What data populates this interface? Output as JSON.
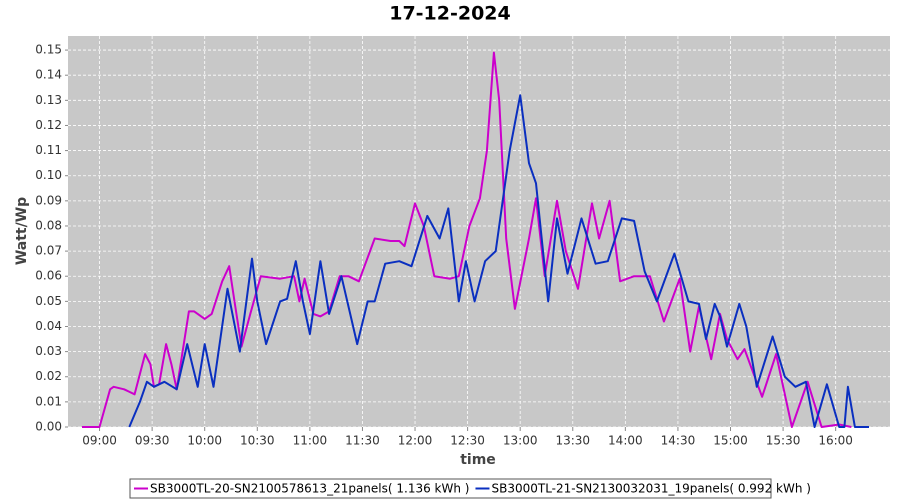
{
  "chart_data": {
    "type": "line",
    "title": "17-12-2024",
    "xlabel": "time",
    "ylabel": "Watt/Wp",
    "xlim": [
      "08:42",
      "16:31"
    ],
    "ylim": [
      0,
      0.1556
    ],
    "xticks": [
      "09:00",
      "09:30",
      "10:00",
      "10:30",
      "11:00",
      "11:30",
      "12:00",
      "12:30",
      "13:00",
      "13:30",
      "14:00",
      "14:30",
      "15:00",
      "15:30",
      "16:00"
    ],
    "yticks": [
      {
        "value": 0,
        "label": "0.00"
      },
      {
        "value": 0.01,
        "label": "0.01"
      },
      {
        "value": 0.02,
        "label": "0.02"
      },
      {
        "value": 0.03,
        "label": "0.03"
      },
      {
        "value": 0.04,
        "label": "0.04"
      },
      {
        "value": 0.05,
        "label": "0.05"
      },
      {
        "value": 0.06,
        "label": "0.06"
      },
      {
        "value": 0.07,
        "label": "0.07"
      },
      {
        "value": 0.08,
        "label": "0.08"
      },
      {
        "value": 0.09,
        "label": "0.09"
      },
      {
        "value": 0.1,
        "label": "0.10"
      },
      {
        "value": 0.11,
        "label": "0.11"
      },
      {
        "value": 0.12,
        "label": "0.12"
      },
      {
        "value": 0.13,
        "label": "0.13"
      },
      {
        "value": 0.14,
        "label": "0.14"
      },
      {
        "value": 0.15,
        "label": "0.15"
      }
    ],
    "grid": true,
    "legend": "bottom",
    "series": [
      {
        "name": "SB3000TL-20-SN2100578613_21panels( 1.136 kWh )",
        "color": "#cc00cc",
        "x": [
          "08:50",
          "09:00",
          "09:06",
          "09:08",
          "09:14",
          "09:20",
          "09:26",
          "09:29",
          "09:31",
          "09:34",
          "09:38",
          "09:41",
          "09:44",
          "09:51",
          "09:54",
          "10:00",
          "10:04",
          "10:10",
          "10:14",
          "10:17",
          "10:21",
          "10:26",
          "10:32",
          "10:43",
          "10:51",
          "10:54",
          "10:57",
          "11:02",
          "11:06",
          "11:11",
          "11:17",
          "11:22",
          "11:28",
          "11:37",
          "11:46",
          "11:51",
          "11:54",
          "12:00",
          "12:05",
          "12:11",
          "12:20",
          "12:25",
          "12:31",
          "12:37",
          "12:41",
          "12:45",
          "12:48",
          "12:52",
          "12:57",
          "13:05",
          "13:09",
          "13:14",
          "13:21",
          "13:26",
          "13:33",
          "13:41",
          "13:45",
          "13:51",
          "13:57",
          "14:05",
          "14:14",
          "14:22",
          "14:31",
          "14:37",
          "14:42",
          "14:49",
          "14:54",
          "14:58",
          "15:04",
          "15:08",
          "15:18",
          "15:26",
          "15:35",
          "15:44",
          "15:52",
          "16:02",
          "16:09"
        ],
        "values": [
          0,
          0,
          0.015,
          0.016,
          0.015,
          0.013,
          0.029,
          0.025,
          0.016,
          0.017,
          0.033,
          0.025,
          0.015,
          0.046,
          0.046,
          0.043,
          0.045,
          0.058,
          0.064,
          0.05,
          0.032,
          0.045,
          0.06,
          0.059,
          0.06,
          0.05,
          0.059,
          0.045,
          0.044,
          0.046,
          0.06,
          0.06,
          0.058,
          0.075,
          0.074,
          0.074,
          0.072,
          0.089,
          0.08,
          0.06,
          0.059,
          0.06,
          0.08,
          0.091,
          0.11,
          0.149,
          0.13,
          0.075,
          0.047,
          0.075,
          0.091,
          0.06,
          0.09,
          0.07,
          0.055,
          0.089,
          0.075,
          0.09,
          0.058,
          0.06,
          0.06,
          0.042,
          0.059,
          0.03,
          0.048,
          0.027,
          0.045,
          0.035,
          0.027,
          0.031,
          0.012,
          0.029,
          0,
          0.018,
          0,
          0.001,
          0
        ]
      },
      {
        "name": "SB3000TL-21-SN2130032031_19panels( 0.992 kWh )",
        "color": "#0a2fc0",
        "x": [
          "09:17",
          "09:23",
          "09:27",
          "09:31",
          "09:37",
          "09:44",
          "09:50",
          "09:56",
          "10:00",
          "10:05",
          "10:13",
          "10:20",
          "10:27",
          "10:30",
          "10:35",
          "10:43",
          "10:47",
          "10:52",
          "10:56",
          "11:00",
          "11:06",
          "11:11",
          "11:18",
          "11:23",
          "11:27",
          "11:33",
          "11:37",
          "11:43",
          "11:51",
          "11:58",
          "12:07",
          "12:14",
          "12:19",
          "12:25",
          "12:29",
          "12:34",
          "12:40",
          "12:46",
          "12:54",
          "13:00",
          "13:05",
          "13:09",
          "13:16",
          "13:21",
          "13:27",
          "13:35",
          "13:43",
          "13:50",
          "13:58",
          "14:05",
          "14:11",
          "14:18",
          "14:28",
          "14:36",
          "14:42",
          "14:46",
          "14:51",
          "14:54",
          "14:58",
          "15:05",
          "15:09",
          "15:15",
          "15:24",
          "15:31",
          "15:37",
          "15:43",
          "15:48",
          "15:55",
          "16:02",
          "16:05",
          "16:07",
          "16:11",
          "16:19"
        ],
        "values": [
          0,
          0.01,
          0.018,
          0.016,
          0.018,
          0.015,
          0.033,
          0.016,
          0.033,
          0.016,
          0.055,
          0.03,
          0.067,
          0.05,
          0.033,
          0.05,
          0.051,
          0.066,
          0.05,
          0.037,
          0.066,
          0.045,
          0.06,
          0.045,
          0.033,
          0.05,
          0.05,
          0.065,
          0.066,
          0.064,
          0.084,
          0.075,
          0.087,
          0.05,
          0.066,
          0.05,
          0.066,
          0.07,
          0.11,
          0.132,
          0.105,
          0.097,
          0.05,
          0.083,
          0.061,
          0.083,
          0.065,
          0.066,
          0.083,
          0.082,
          0.062,
          0.05,
          0.069,
          0.05,
          0.049,
          0.035,
          0.049,
          0.044,
          0.032,
          0.049,
          0.04,
          0.016,
          0.036,
          0.02,
          0.016,
          0.018,
          0,
          0.017,
          0,
          0,
          0.016,
          0,
          0
        ]
      }
    ]
  }
}
